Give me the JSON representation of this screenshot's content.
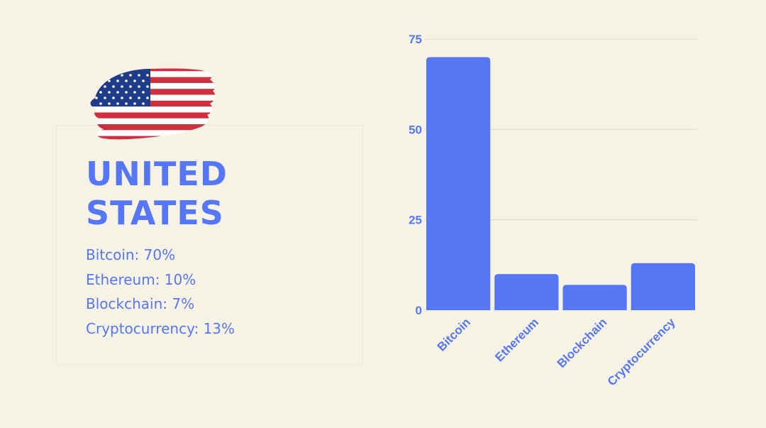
{
  "country": {
    "title": "UNITED\nSTATES",
    "flag_icon": "us-flag-icon"
  },
  "stats": [
    {
      "label": "Bitcoin: 70%"
    },
    {
      "label": "Ethereum: 10%"
    },
    {
      "label": "Blockchain: 7%"
    },
    {
      "label": "Cryptocurrency: 13%"
    }
  ],
  "colors": {
    "background": "#f6f2e6",
    "accent": "#5677f5",
    "flag_red": "#d0303e",
    "flag_blue": "#1f3c8a"
  },
  "chart_data": {
    "type": "bar",
    "categories": [
      "Bitcoin",
      "Ethereum",
      "Blockchain",
      "Cryptocurrency"
    ],
    "values": [
      70,
      10,
      7,
      13
    ],
    "title": "",
    "xlabel": "",
    "ylabel": "",
    "ylim": [
      0,
      75
    ],
    "yticks": [
      0,
      25,
      50,
      75
    ],
    "grid": true,
    "legend": "none"
  }
}
